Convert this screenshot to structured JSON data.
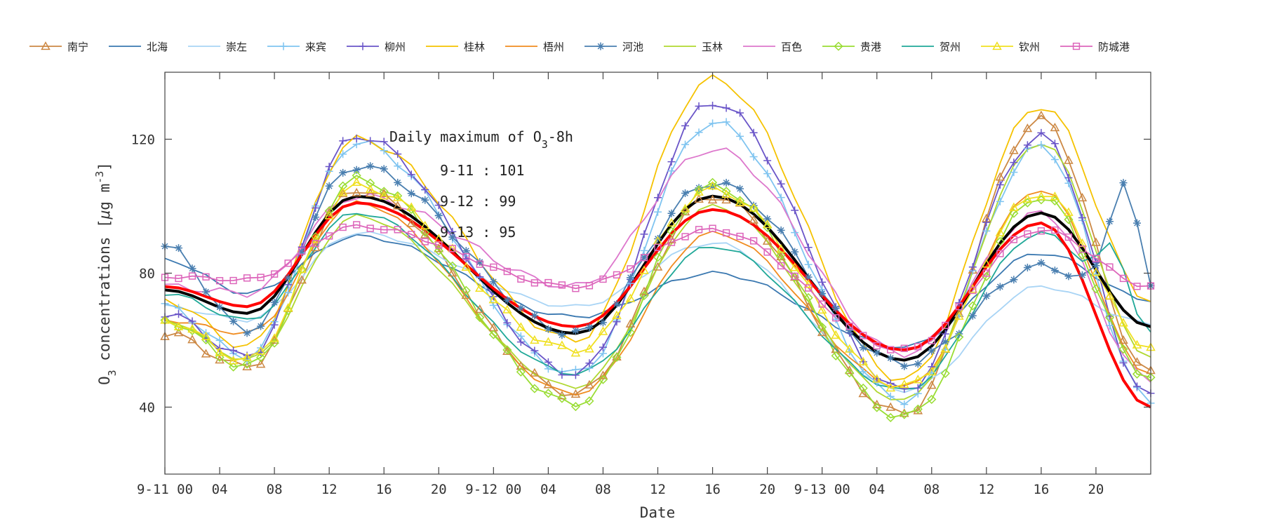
{
  "chart_data": {
    "type": "line",
    "xlabel": "Date",
    "ylabel_main": "O",
    "ylabel_sub": "3",
    "ylabel_rest": " concentrations [",
    "ylabel_mu": "μ",
    "ylabel_unit": "g m",
    "ylabel_sup": "-3",
    "ylabel_close": "]",
    "ylim": [
      20,
      140
    ],
    "xlim": [
      0,
      72
    ],
    "y_ticks": [
      40,
      80,
      120
    ],
    "x_ticks": [
      {
        "hour": 0,
        "label": "9-11 00"
      },
      {
        "hour": 4,
        "label": "04"
      },
      {
        "hour": 8,
        "label": "08"
      },
      {
        "hour": 12,
        "label": "12"
      },
      {
        "hour": 16,
        "label": "16"
      },
      {
        "hour": 20,
        "label": "20"
      },
      {
        "hour": 24,
        "label": "9-12 00"
      },
      {
        "hour": 28,
        "label": "04"
      },
      {
        "hour": 32,
        "label": "08"
      },
      {
        "hour": 36,
        "label": "12"
      },
      {
        "hour": 40,
        "label": "16"
      },
      {
        "hour": 44,
        "label": "20"
      },
      {
        "hour": 48,
        "label": "9-13 00"
      },
      {
        "hour": 52,
        "label": "04"
      },
      {
        "hour": 56,
        "label": "08"
      },
      {
        "hour": 60,
        "label": "12"
      },
      {
        "hour": 64,
        "label": "16"
      },
      {
        "hour": 68,
        "label": "20"
      }
    ],
    "legend_position": "top",
    "annotation": {
      "title_main": "Daily maximum of O",
      "title_sub": "3",
      "title_rest": "-8h",
      "lines": [
        "9-11 : 101",
        "9-12 : 99",
        "9-13 : 95"
      ]
    },
    "series": [
      {
        "name": "南宁",
        "color": "#cc8844",
        "marker": "triangle",
        "base": 62,
        "peaks": [
          105,
          103,
          126
        ],
        "valleys": [
          52,
          44,
          38,
          50
        ],
        "ripple": 2
      },
      {
        "name": "北海",
        "color": "#3a78b0",
        "marker": "none",
        "base": 84,
        "peaks": [
          91,
          80,
          86
        ],
        "valleys": [
          74,
          67,
          58,
          72
        ],
        "ripple": 1
      },
      {
        "name": "崇左",
        "color": "#a8d4f5",
        "marker": "none",
        "base": 70,
        "peaks": [
          92,
          89,
          76
        ],
        "valleys": [
          66,
          70,
          45,
          65
        ],
        "ripple": 1
      },
      {
        "name": "来宾",
        "color": "#7fc4f0",
        "marker": "plus",
        "base": 70,
        "peaks": [
          119,
          125,
          118
        ],
        "valleys": [
          55,
          50,
          42,
          42
        ],
        "ripple": 2
      },
      {
        "name": "柳州",
        "color": "#6a55c8",
        "marker": "plus",
        "base": 68,
        "peaks": [
          121,
          131,
          121
        ],
        "valleys": [
          55,
          50,
          45,
          43
        ],
        "ripple": 2
      },
      {
        "name": "桂林",
        "color": "#f5c200",
        "marker": "none",
        "base": 72,
        "peaks": [
          120,
          138,
          130
        ],
        "valleys": [
          58,
          60,
          48,
          72
        ],
        "ripple": 2
      },
      {
        "name": "梧州",
        "color": "#f08c20",
        "marker": "none",
        "base": 66,
        "peaks": [
          101,
          92,
          105
        ],
        "valleys": [
          62,
          44,
          46,
          50
        ],
        "ripple": 1
      },
      {
        "name": "河池",
        "color": "#4a7fb0",
        "marker": "star",
        "base": 88,
        "peaks": [
          112,
          107,
          82
        ],
        "valleys": [
          63,
          62,
          53,
          68
        ],
        "ripple": 2,
        "extra_peak": [
          70,
          107
        ]
      },
      {
        "name": "玉林",
        "color": "#b0d830",
        "marker": "none",
        "base": 66,
        "peaks": [
          97,
          100,
          119
        ],
        "valleys": [
          54,
          46,
          42,
          55
        ],
        "ripple": 1
      },
      {
        "name": "百色",
        "color": "#dd77cc",
        "marker": "none",
        "base": 76,
        "peaks": [
          103,
          117,
          98
        ],
        "valleys": [
          74,
          76,
          56,
          48
        ],
        "ripple": 2
      },
      {
        "name": "贵港",
        "color": "#99dd33",
        "marker": "diamond",
        "base": 66,
        "peaks": [
          108,
          106,
          103
        ],
        "valleys": [
          52,
          41,
          37,
          49
        ],
        "ripple": 2
      },
      {
        "name": "贺州",
        "color": "#20a898",
        "marker": "none",
        "base": 74,
        "peaks": [
          98,
          88,
          92
        ],
        "valleys": [
          66,
          50,
          45,
          61
        ],
        "ripple": 1,
        "extra_peak": [
          69,
          89
        ]
      },
      {
        "name": "钦州",
        "color": "#f0e020",
        "marker": "triangle",
        "base": 66,
        "peaks": [
          106,
          105,
          104
        ],
        "valleys": [
          54,
          57,
          46,
          58
        ],
        "ripple": 2
      },
      {
        "name": "防城港",
        "color": "#dd66bb",
        "marker": "square",
        "base": 79,
        "peaks": [
          94,
          93,
          93
        ],
        "valleys": [
          78,
          76,
          57,
          76
        ],
        "ripple": 1
      }
    ],
    "mean_lines": [
      {
        "color": "#000000",
        "base": 75,
        "peaks": [
          103,
          103,
          98
        ],
        "valleys": [
          68,
          62,
          54,
          64
        ],
        "ripple": 0
      },
      {
        "color": "#ff0000",
        "base": 76,
        "peaks": [
          101,
          99,
          95
        ],
        "valleys": [
          70,
          64,
          57,
          40
        ],
        "ripple": 0
      }
    ]
  }
}
